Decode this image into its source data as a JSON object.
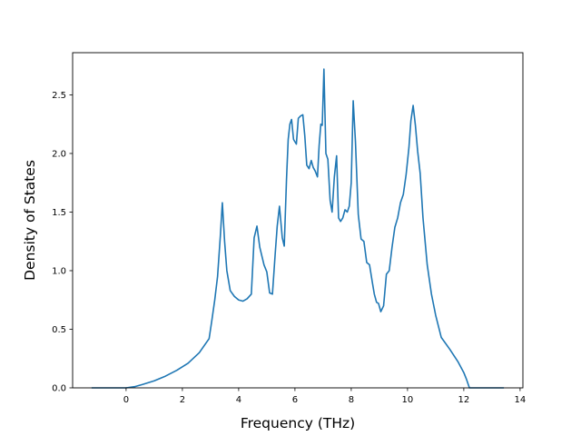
{
  "chart_data": {
    "type": "line",
    "title": "",
    "xlabel": "Frequency (THz)",
    "ylabel": "Density of States",
    "xlim": [
      -1.9,
      14.1
    ],
    "ylim": [
      0.0,
      2.86
    ],
    "xticks": [
      0,
      2,
      4,
      6,
      8,
      10,
      12,
      14
    ],
    "xtick_labels": [
      "0",
      "2",
      "4",
      "6",
      "8",
      "10",
      "12",
      "14"
    ],
    "yticks": [
      0.0,
      0.5,
      1.0,
      1.5,
      2.0,
      2.5
    ],
    "ytick_labels": [
      "0.0",
      "0.5",
      "1.0",
      "1.5",
      "2.0",
      "2.5"
    ],
    "grid": false,
    "colors": {
      "series": "#1f77b4"
    },
    "series": [
      {
        "x": [
          -1.2,
          -0.5,
          0.0,
          0.3,
          0.6,
          1.0,
          1.4,
          1.8,
          2.2,
          2.6,
          2.95,
          3.05,
          3.15,
          3.25,
          3.35,
          3.42,
          3.5,
          3.58,
          3.7,
          3.85,
          4.0,
          4.15,
          4.3,
          4.45,
          4.55,
          4.65,
          4.75,
          4.9,
          5.0,
          5.1,
          5.2,
          5.3,
          5.37,
          5.45,
          5.55,
          5.62,
          5.7,
          5.76,
          5.82,
          5.88,
          5.95,
          6.05,
          6.12,
          6.2,
          6.28,
          6.35,
          6.42,
          6.5,
          6.58,
          6.65,
          6.72,
          6.8,
          6.86,
          6.92,
          6.97,
          7.03,
          7.1,
          7.17,
          7.25,
          7.32,
          7.4,
          7.48,
          7.55,
          7.62,
          7.7,
          7.78,
          7.86,
          7.93,
          8.0,
          8.07,
          8.15,
          8.25,
          8.35,
          8.45,
          8.55,
          8.65,
          8.75,
          8.82,
          8.9,
          8.97,
          9.05,
          9.15,
          9.25,
          9.35,
          9.45,
          9.55,
          9.65,
          9.75,
          9.85,
          9.95,
          10.05,
          10.12,
          10.2,
          10.28,
          10.36,
          10.45,
          10.55,
          10.7,
          10.85,
          11.0,
          11.2,
          11.5,
          11.8,
          12.0,
          12.1,
          12.2,
          12.5,
          13.4
        ],
        "y": [
          0.0,
          0.0,
          0.0,
          0.01,
          0.03,
          0.06,
          0.1,
          0.15,
          0.21,
          0.3,
          0.42,
          0.58,
          0.75,
          0.95,
          1.3,
          1.58,
          1.25,
          1.0,
          0.83,
          0.78,
          0.75,
          0.74,
          0.76,
          0.8,
          1.28,
          1.38,
          1.2,
          1.05,
          0.99,
          0.81,
          0.8,
          1.15,
          1.38,
          1.55,
          1.28,
          1.21,
          1.78,
          2.12,
          2.25,
          2.29,
          2.12,
          2.08,
          2.3,
          2.32,
          2.33,
          2.15,
          1.9,
          1.87,
          1.94,
          1.88,
          1.85,
          1.8,
          2.07,
          2.25,
          2.24,
          2.72,
          2.0,
          1.95,
          1.6,
          1.5,
          1.8,
          1.98,
          1.45,
          1.42,
          1.45,
          1.52,
          1.5,
          1.55,
          1.75,
          2.45,
          2.1,
          1.48,
          1.27,
          1.25,
          1.07,
          1.05,
          0.9,
          0.8,
          0.73,
          0.72,
          0.65,
          0.7,
          0.97,
          1.0,
          1.2,
          1.37,
          1.45,
          1.58,
          1.65,
          1.82,
          2.05,
          2.28,
          2.41,
          2.24,
          2.02,
          1.83,
          1.45,
          1.05,
          0.8,
          0.62,
          0.43,
          0.33,
          0.22,
          0.13,
          0.07,
          0.0,
          0.0,
          0.0
        ]
      }
    ]
  }
}
